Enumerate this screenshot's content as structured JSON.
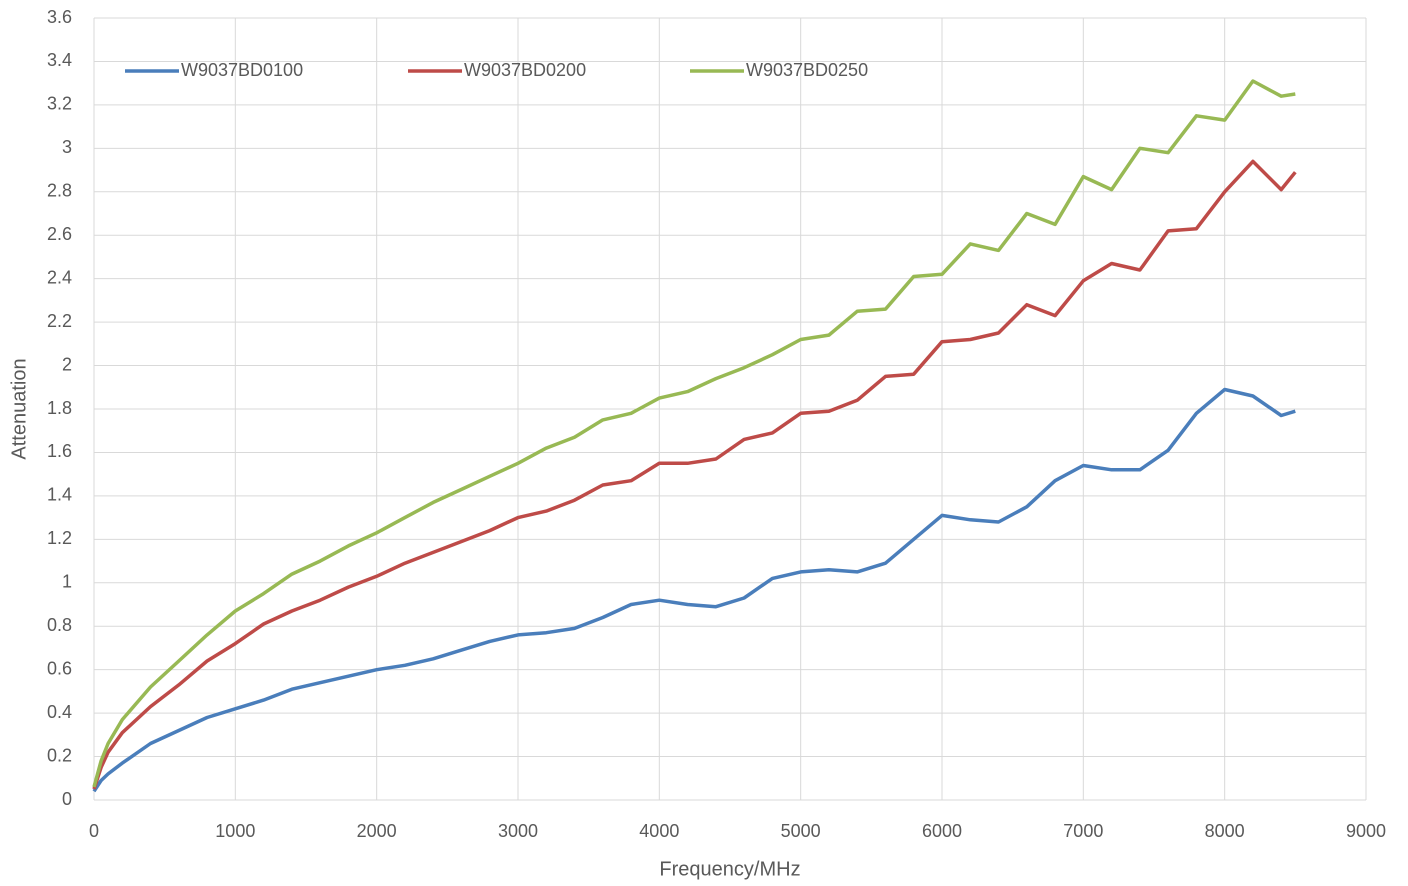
{
  "chart_data": {
    "type": "line",
    "x_label": "Frequency/MHz",
    "y_label": "Attenuation",
    "x": [
      0,
      50,
      100,
      200,
      400,
      600,
      800,
      1000,
      1200,
      1400,
      1600,
      1800,
      2000,
      2200,
      2400,
      2600,
      2800,
      3000,
      3200,
      3400,
      3600,
      3800,
      4000,
      4200,
      4400,
      4600,
      4800,
      5000,
      5200,
      5400,
      5600,
      5800,
      6000,
      6200,
      6400,
      6600,
      6800,
      7000,
      7200,
      7400,
      7600,
      7800,
      8000,
      8200,
      8400,
      8500
    ],
    "series": [
      {
        "name": "W9037BD0100",
        "color": "#4a7ebb",
        "values": [
          0.04,
          0.09,
          0.12,
          0.17,
          0.26,
          0.32,
          0.38,
          0.42,
          0.46,
          0.51,
          0.54,
          0.57,
          0.6,
          0.62,
          0.65,
          0.69,
          0.73,
          0.76,
          0.77,
          0.79,
          0.84,
          0.9,
          0.92,
          0.9,
          0.89,
          0.93,
          1.02,
          1.05,
          1.06,
          1.05,
          1.09,
          1.2,
          1.31,
          1.29,
          1.28,
          1.35,
          1.47,
          1.54,
          1.52,
          1.52,
          1.61,
          1.78,
          1.89,
          1.86,
          1.77,
          1.79
        ]
      },
      {
        "name": "W9037BD0200",
        "color": "#be4b48",
        "values": [
          0.05,
          0.15,
          0.22,
          0.31,
          0.43,
          0.53,
          0.64,
          0.72,
          0.81,
          0.87,
          0.92,
          0.98,
          1.03,
          1.09,
          1.14,
          1.19,
          1.24,
          1.3,
          1.33,
          1.38,
          1.45,
          1.47,
          1.55,
          1.55,
          1.57,
          1.66,
          1.69,
          1.78,
          1.79,
          1.84,
          1.95,
          1.96,
          2.11,
          2.12,
          2.15,
          2.28,
          2.23,
          2.39,
          2.47,
          2.44,
          2.62,
          2.63,
          2.8,
          2.94,
          2.81,
          2.89
        ]
      },
      {
        "name": "W9037BD0250",
        "color": "#98b954",
        "values": [
          0.06,
          0.18,
          0.26,
          0.37,
          0.52,
          0.64,
          0.76,
          0.87,
          0.95,
          1.04,
          1.1,
          1.17,
          1.23,
          1.3,
          1.37,
          1.43,
          1.49,
          1.55,
          1.62,
          1.67,
          1.75,
          1.78,
          1.85,
          1.88,
          1.94,
          1.99,
          2.05,
          2.12,
          2.14,
          2.25,
          2.26,
          2.41,
          2.42,
          2.56,
          2.53,
          2.7,
          2.65,
          2.87,
          2.81,
          3.0,
          2.98,
          3.15,
          3.13,
          3.31,
          3.24,
          3.25
        ]
      }
    ],
    "xlim": [
      0,
      9000
    ],
    "xticks": [
      0,
      1000,
      2000,
      3000,
      4000,
      5000,
      6000,
      7000,
      8000,
      9000
    ],
    "ylim": [
      0,
      3.6
    ],
    "yticks": [
      0,
      0.2,
      0.4,
      0.6,
      0.8,
      1,
      1.2,
      1.4,
      1.6,
      1.8,
      2,
      2.2,
      2.4,
      2.6,
      2.8,
      3,
      3.2,
      3.4,
      3.6
    ],
    "grid": true,
    "legend": "top"
  }
}
